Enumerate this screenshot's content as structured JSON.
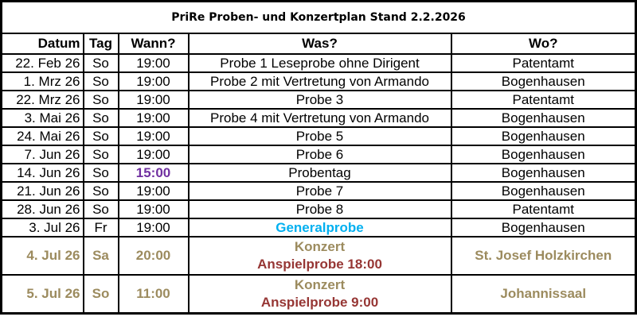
{
  "title": "PriRe Proben- und Konzertplan Stand 2.2.2026",
  "headers": [
    "Datum",
    "Tag",
    "Wann?",
    "Was?",
    "Wo?"
  ],
  "rows": [
    {
      "datum": "22. Feb 26",
      "tag": "So",
      "wann": "19:00",
      "was": "Probe 1 Leseprobe ohne Dirigent",
      "wo": "Patentamt"
    },
    {
      "datum": "1. Mrz 26",
      "tag": "So",
      "wann": "19:00",
      "was": "Probe 2 mit Vertretung von Armando",
      "wo": "Bogenhausen"
    },
    {
      "datum": "22. Mrz 26",
      "tag": "So",
      "wann": "19:00",
      "was": "Probe 3",
      "wo": "Patentamt"
    },
    {
      "datum": "3. Mai 26",
      "tag": "So",
      "wann": "19:00",
      "was": "Probe 4 mit Vertretung von Armando",
      "wo": "Bogenhausen"
    },
    {
      "datum": "24. Mai 26",
      "tag": "So",
      "wann": "19:00",
      "was": "Probe 5",
      "wo": "Bogenhausen"
    },
    {
      "datum": "7. Jun 26",
      "tag": "So",
      "wann": "19:00",
      "was": "Probe 6",
      "wo": "Bogenhausen"
    },
    {
      "datum": "14. Jun 26",
      "tag": "So",
      "wann": "15:00",
      "was": "Probentag",
      "wo": "Bogenhausen"
    },
    {
      "datum": "21. Jun 26",
      "tag": "So",
      "wann": "19:00",
      "was": "Probe 7",
      "wo": "Bogenhausen"
    },
    {
      "datum": "28. Jun 26",
      "tag": "So",
      "wann": "19:00",
      "was": "Probe 8",
      "wo": "Patentamt"
    },
    {
      "datum": "3. Jul 26",
      "tag": "Fr",
      "wann": "19:00",
      "was": "Generalprobe",
      "wo": "Bogenhausen"
    }
  ],
  "concerts": [
    {
      "datum": "4. Jul 26",
      "tag": "Sa",
      "wann": "20:00",
      "was": "Konzert",
      "note": "Anspielprobe 18:00",
      "wo": "St. Josef Holzkirchen"
    },
    {
      "datum": "5. Jul 26",
      "tag": "So",
      "wann": "11:00",
      "was": "Konzert",
      "note": "Anspielprobe 9:00",
      "wo": "Johannissaal"
    }
  ],
  "colors": {
    "concert": "#9c8b5e",
    "note": "#963634",
    "highlight_time": "#7030a0",
    "generalprobe": "#00b0f0"
  }
}
